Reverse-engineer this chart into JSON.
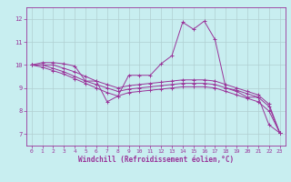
{
  "xlabel": "Windchill (Refroidissement éolien,°C)",
  "background_color": "#c8eef0",
  "line_color": "#993399",
  "grid_color": "#b0cfd1",
  "xlim": [
    -0.5,
    23.5
  ],
  "ylim": [
    6.5,
    12.5
  ],
  "yticks": [
    7,
    8,
    9,
    10,
    11,
    12
  ],
  "xticks": [
    0,
    1,
    2,
    3,
    4,
    5,
    6,
    7,
    8,
    9,
    10,
    11,
    12,
    13,
    14,
    15,
    16,
    17,
    18,
    19,
    20,
    21,
    22,
    23
  ],
  "series": [
    [
      10.0,
      10.1,
      10.1,
      10.05,
      9.95,
      9.3,
      9.3,
      8.4,
      8.65,
      9.55,
      9.55,
      9.55,
      10.05,
      10.4,
      11.85,
      11.55,
      11.9,
      11.1,
      9.0,
      8.85,
      8.6,
      8.6,
      7.4,
      7.05
    ],
    [
      10.0,
      10.0,
      10.0,
      9.85,
      9.7,
      9.5,
      9.3,
      9.15,
      9.0,
      9.1,
      9.15,
      9.2,
      9.25,
      9.3,
      9.35,
      9.35,
      9.35,
      9.3,
      9.15,
      9.0,
      8.85,
      8.7,
      8.3,
      7.05
    ],
    [
      10.0,
      10.0,
      9.85,
      9.7,
      9.5,
      9.3,
      9.15,
      9.0,
      8.85,
      8.95,
      9.0,
      9.05,
      9.1,
      9.15,
      9.2,
      9.2,
      9.2,
      9.15,
      9.0,
      8.9,
      8.75,
      8.6,
      8.2,
      7.05
    ],
    [
      10.0,
      9.9,
      9.75,
      9.6,
      9.4,
      9.2,
      9.0,
      8.8,
      8.65,
      8.8,
      8.85,
      8.9,
      8.95,
      9.0,
      9.05,
      9.05,
      9.05,
      9.0,
      8.85,
      8.7,
      8.55,
      8.4,
      8.0,
      7.05
    ]
  ],
  "label_fontsize": 5.0,
  "tick_fontsize": 4.5,
  "xlabel_fontsize": 5.5
}
